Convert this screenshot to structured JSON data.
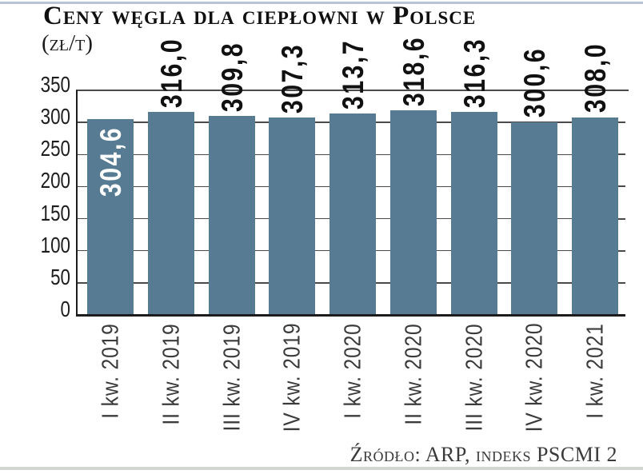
{
  "page": {
    "title": "Ceny węgla dla ciepłowni w Polsce",
    "unit": "(zł/t)",
    "source": "Źródło: ARP, indeks PSCMI 2"
  },
  "chart_data": {
    "type": "bar",
    "title": "Ceny węgla dla ciepłowni w Polsce",
    "unit_label": "(zł/t)",
    "source": "Źródło: ARP, indeks PSCMI 2",
    "categories": [
      "I kw. 2019",
      "II kw. 2019",
      "III kw. 2019",
      "IV kw. 2019",
      "I kw. 2020",
      "II kw. 2020",
      "III kw. 2020",
      "IV kw. 2020",
      "I kw. 2021"
    ],
    "values": [
      304.6,
      316.0,
      309.8,
      307.3,
      313.7,
      318.6,
      316.3,
      300.6,
      308.0
    ],
    "value_labels": [
      "304,6",
      "316,0",
      "309,8",
      "307,3",
      "313,7",
      "318,6",
      "316,3",
      "300,6",
      "308,0"
    ],
    "ylim": [
      0,
      350
    ],
    "yticks": [
      0,
      50,
      100,
      150,
      200,
      250,
      300,
      350
    ],
    "grid": true,
    "legend_position": "none",
    "bar_color": "#567b93",
    "grid_color": "#4a4a4a",
    "axis_color": "#1c1c1c",
    "value_label_color": "#111111",
    "first_value_label_color": "#ffffff",
    "category_label_color": "#3b3b3b"
  }
}
